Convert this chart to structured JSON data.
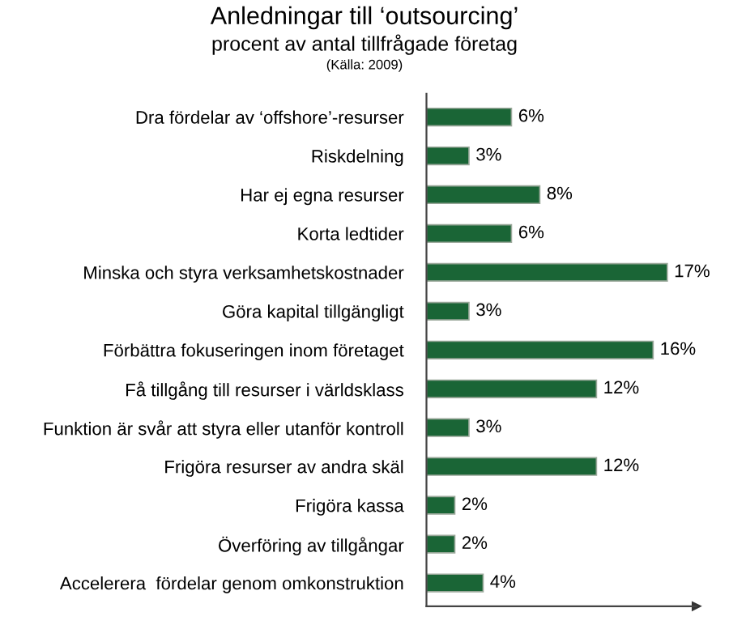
{
  "chart_data": {
    "type": "bar",
    "orientation": "horizontal",
    "title": "Anledningar till ‘outsourcing’",
    "subtitle": "procent av antal tillfrågade företag",
    "annotations": [
      "(Källa: 2009)"
    ],
    "categories": [
      "Dra fördelar av ‘offshore’-resurser",
      "Riskdelning",
      "Har ej egna resurser",
      "Korta ledtider",
      "Minska och styra verksamhetskostnader",
      "Göra kapital tillgängligt",
      "Förbättra fokuseringen inom företaget",
      "Få tillgång till resurser i världsklass",
      "Funktion är svår att styra eller utanför kontroll",
      "Frigöra resurser av andra skäl",
      "Frigöra kassa",
      "Överföring av tillgångar",
      "Accelerera  fördelar genom omkonstruktion"
    ],
    "values": [
      6,
      3,
      8,
      6,
      17,
      3,
      16,
      12,
      3,
      12,
      2,
      2,
      4
    ],
    "value_labels": [
      "6%",
      "3%",
      "8%",
      "6%",
      "17%",
      "3%",
      "16%",
      "12%",
      "3%",
      "12%",
      "2%",
      "2%",
      "4%"
    ],
    "color": "#1a6536",
    "grid": false,
    "legend": false
  }
}
